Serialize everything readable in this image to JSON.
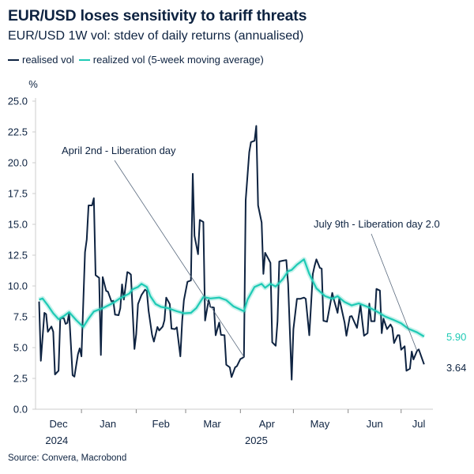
{
  "title": "EUR/USD loses sensitivity to tariff threats",
  "subtitle": "EUR/USD 1W vol: stdev of daily returns (annualised)",
  "source": "Source: Convera, Macrobond",
  "colors": {
    "realised": "#0e2341",
    "moving_average": "#1ecab5",
    "axis": "#cccccc",
    "annotation_line": "#5a6a7e"
  },
  "chart_data": {
    "type": "line",
    "title": "EUR/USD loses sensitivity to tariff threats",
    "subtitle": "EUR/USD 1W vol: stdev of daily returns (annualised)",
    "ylabel": "%",
    "ylim": [
      0,
      25
    ],
    "yticks": [
      "0.0",
      "2.5",
      "5.0",
      "7.5",
      "10.0",
      "12.5",
      "15.0",
      "17.5",
      "20.0",
      "22.5",
      "25.0"
    ],
    "xlim": [
      "2024-12-06",
      "2025-07-19"
    ],
    "xtick_dates": [
      "2025-01-01",
      "2025-02-01",
      "2025-03-01",
      "2025-04-01",
      "2025-05-01",
      "2025-06-01",
      "2025-07-01"
    ],
    "month_labels": [
      {
        "label": "Dec",
        "date": "2024-12-19"
      },
      {
        "label": "Jan",
        "date": "2025-01-16"
      },
      {
        "label": "Feb",
        "date": "2025-02-15"
      },
      {
        "label": "Mar",
        "date": "2025-03-16"
      },
      {
        "label": "Apr",
        "date": "2025-04-16"
      },
      {
        "label": "May",
        "date": "2025-05-16"
      },
      {
        "label": "Jun",
        "date": "2025-06-16"
      },
      {
        "label": "Jul",
        "date": "2025-07-11"
      }
    ],
    "year_labels": [
      {
        "label": "2024",
        "date": "2024-12-18"
      },
      {
        "label": "2025",
        "date": "2025-04-10"
      }
    ],
    "grid": false,
    "legend_position": "top-left",
    "series": [
      {
        "name": "realised vol",
        "color": "#0e2341",
        "end_label": "3.64",
        "points": [
          [
            "2024-12-08",
            8.74
          ],
          [
            "2024-12-09",
            3.93
          ],
          [
            "2024-12-11",
            7.82
          ],
          [
            "2024-12-12",
            7.71
          ],
          [
            "2024-12-13",
            6.28
          ],
          [
            "2024-12-15",
            6.71
          ],
          [
            "2024-12-16",
            6.28
          ],
          [
            "2024-12-17",
            2.82
          ],
          [
            "2024-12-19",
            3.12
          ],
          [
            "2024-12-20",
            7.39
          ],
          [
            "2024-12-22",
            7.39
          ],
          [
            "2024-12-23",
            6.92
          ],
          [
            "2024-12-24",
            7.0
          ],
          [
            "2024-12-25",
            7.82
          ],
          [
            "2024-12-27",
            2.76
          ],
          [
            "2024-12-28",
            2.65
          ],
          [
            "2024-12-30",
            4.47
          ],
          [
            "2024-12-31",
            4.94
          ],
          [
            "2025-01-01",
            4.29
          ],
          [
            "2025-01-03",
            12.74
          ],
          [
            "2025-01-04",
            13.76
          ],
          [
            "2025-01-05",
            16.54
          ],
          [
            "2025-01-07",
            16.54
          ],
          [
            "2025-01-08",
            17.12
          ],
          [
            "2025-01-09",
            10.88
          ],
          [
            "2025-01-11",
            10.66
          ],
          [
            "2025-01-12",
            4.4
          ],
          [
            "2025-01-13",
            10.72
          ],
          [
            "2025-01-15",
            9.6
          ],
          [
            "2025-01-16",
            9.53
          ],
          [
            "2025-01-18",
            8.74
          ],
          [
            "2025-01-19",
            8.8
          ],
          [
            "2025-01-20",
            7.67
          ],
          [
            "2025-01-22",
            7.63
          ],
          [
            "2025-01-23",
            8.2
          ],
          [
            "2025-01-24",
            10.13
          ],
          [
            "2025-01-25",
            8.89
          ],
          [
            "2025-01-27",
            11.13
          ],
          [
            "2025-01-28",
            11.06
          ],
          [
            "2025-01-29",
            10.92
          ],
          [
            "2025-01-31",
            4.89
          ],
          [
            "2025-02-01",
            6.07
          ],
          [
            "2025-02-02",
            8.53
          ],
          [
            "2025-02-04",
            9.27
          ],
          [
            "2025-02-06",
            9.7
          ],
          [
            "2025-02-07",
            9.6
          ],
          [
            "2025-02-08",
            7.99
          ],
          [
            "2025-02-10",
            6.03
          ],
          [
            "2025-02-11",
            5.49
          ],
          [
            "2025-02-13",
            6.67
          ],
          [
            "2025-02-14",
            6.39
          ],
          [
            "2025-02-16",
            6.71
          ],
          [
            "2025-02-17",
            7.24
          ],
          [
            "2025-02-18",
            9.06
          ],
          [
            "2025-02-20",
            8.53
          ],
          [
            "2025-02-21",
            6.54
          ],
          [
            "2025-02-23",
            6.5
          ],
          [
            "2025-02-24",
            6.65
          ],
          [
            "2025-02-26",
            4.29
          ],
          [
            "2025-02-27",
            7.14
          ],
          [
            "2025-02-28",
            8.85
          ],
          [
            "2025-03-02",
            10.34
          ],
          [
            "2025-03-04",
            10.45
          ],
          [
            "2025-03-05",
            19.1
          ],
          [
            "2025-03-06",
            14.08
          ],
          [
            "2025-03-08",
            12.58
          ],
          [
            "2025-03-09",
            15.36
          ],
          [
            "2025-03-11",
            15.19
          ],
          [
            "2025-03-12",
            7.2
          ],
          [
            "2025-03-14",
            8.85
          ],
          [
            "2025-03-15",
            8.31
          ],
          [
            "2025-03-17",
            8.25
          ],
          [
            "2025-03-18",
            6.0
          ],
          [
            "2025-03-20",
            7.03
          ],
          [
            "2025-03-21",
            6.03
          ],
          [
            "2025-03-23",
            6.0
          ],
          [
            "2025-03-24",
            3.61
          ],
          [
            "2025-03-26",
            3.4
          ],
          [
            "2025-03-27",
            2.61
          ],
          [
            "2025-03-29",
            3.4
          ],
          [
            "2025-03-30",
            3.5
          ],
          [
            "2025-04-01",
            4.08
          ],
          [
            "2025-04-02",
            4.15
          ],
          [
            "2025-04-03",
            4.25
          ],
          [
            "2025-04-04",
            16.97
          ],
          [
            "2025-04-06",
            20.85
          ],
          [
            "2025-04-07",
            21.67
          ],
          [
            "2025-04-09",
            21.78
          ],
          [
            "2025-04-10",
            22.99
          ],
          [
            "2025-04-11",
            16.54
          ],
          [
            "2025-04-13",
            15.15
          ],
          [
            "2025-04-14",
            10.98
          ],
          [
            "2025-04-15",
            12.69
          ],
          [
            "2025-04-17",
            12.16
          ],
          [
            "2025-04-18",
            11.88
          ],
          [
            "2025-04-19",
            5.43
          ],
          [
            "2025-04-21",
            5.15
          ],
          [
            "2025-04-22",
            7.14
          ],
          [
            "2025-04-23",
            11.99
          ],
          [
            "2025-04-25",
            12.05
          ],
          [
            "2025-04-27",
            12.1
          ],
          [
            "2025-04-28",
            10.2
          ],
          [
            "2025-04-30",
            2.4
          ],
          [
            "2025-05-01",
            6.5
          ],
          [
            "2025-05-03",
            8.96
          ],
          [
            "2025-05-05",
            8.96
          ],
          [
            "2025-05-07",
            9.06
          ],
          [
            "2025-05-08",
            8.96
          ],
          [
            "2025-05-10",
            6.0
          ],
          [
            "2025-05-12",
            10.98
          ],
          [
            "2025-05-13",
            11.62
          ],
          [
            "2025-05-14",
            12.16
          ],
          [
            "2025-05-16",
            11.47
          ],
          [
            "2025-05-17",
            11.41
          ],
          [
            "2025-05-18",
            7.18
          ],
          [
            "2025-05-20",
            7.1
          ],
          [
            "2025-05-21",
            7.87
          ],
          [
            "2025-05-23",
            9.44
          ],
          [
            "2025-05-24",
            8.85
          ],
          [
            "2025-05-26",
            7.82
          ],
          [
            "2025-05-27",
            8.99
          ],
          [
            "2025-05-29",
            7.67
          ],
          [
            "2025-05-30",
            7.03
          ],
          [
            "2025-05-31",
            5.96
          ],
          [
            "2025-06-02",
            7.52
          ],
          [
            "2025-06-03",
            7.56
          ],
          [
            "2025-06-05",
            6.92
          ],
          [
            "2025-06-06",
            6.6
          ],
          [
            "2025-06-08",
            8.46
          ],
          [
            "2025-06-09",
            7.14
          ],
          [
            "2025-06-10",
            5.96
          ],
          [
            "2025-06-12",
            6.17
          ],
          [
            "2025-06-13",
            8.57
          ],
          [
            "2025-06-14",
            7.14
          ],
          [
            "2025-06-16",
            7.14
          ],
          [
            "2025-06-17",
            9.76
          ],
          [
            "2025-06-19",
            9.63
          ],
          [
            "2025-06-20",
            6.17
          ],
          [
            "2025-06-21",
            7.35
          ],
          [
            "2025-06-23",
            6.5
          ],
          [
            "2025-06-25",
            6.88
          ],
          [
            "2025-06-26",
            6.6
          ],
          [
            "2025-06-27",
            5.37
          ],
          [
            "2025-06-29",
            6.0
          ],
          [
            "2025-06-30",
            6.0
          ],
          [
            "2025-07-01",
            4.83
          ],
          [
            "2025-07-03",
            5.11
          ],
          [
            "2025-07-04",
            3.12
          ],
          [
            "2025-07-06",
            3.29
          ],
          [
            "2025-07-07",
            4.68
          ],
          [
            "2025-07-08",
            4.04
          ],
          [
            "2025-07-10",
            4.74
          ],
          [
            "2025-07-11",
            4.85
          ],
          [
            "2025-07-14",
            3.64
          ]
        ]
      },
      {
        "name": "realized vol (5-week moving average)",
        "color": "#1ecab5",
        "end_label": "5.90",
        "points": [
          [
            "2024-12-08",
            8.89
          ],
          [
            "2024-12-10",
            8.99
          ],
          [
            "2024-12-13",
            8.42
          ],
          [
            "2024-12-16",
            7.78
          ],
          [
            "2024-12-19",
            7.31
          ],
          [
            "2024-12-22",
            7.56
          ],
          [
            "2024-12-25",
            7.88
          ],
          [
            "2024-12-29",
            7.24
          ],
          [
            "2025-01-02",
            6.67
          ],
          [
            "2025-01-05",
            7.35
          ],
          [
            "2025-01-08",
            7.93
          ],
          [
            "2025-01-13",
            8.2
          ],
          [
            "2025-01-19",
            8.63
          ],
          [
            "2025-01-23",
            9.02
          ],
          [
            "2025-01-28",
            9.38
          ],
          [
            "2025-01-30",
            9.74
          ],
          [
            "2025-02-02",
            9.92
          ],
          [
            "2025-02-04",
            10.17
          ],
          [
            "2025-02-07",
            9.92
          ],
          [
            "2025-02-09",
            9.17
          ],
          [
            "2025-02-12",
            8.53
          ],
          [
            "2025-02-15",
            8.31
          ],
          [
            "2025-02-19",
            8.2
          ],
          [
            "2025-02-24",
            7.95
          ],
          [
            "2025-02-28",
            7.78
          ],
          [
            "2025-03-04",
            7.82
          ],
          [
            "2025-03-07",
            8.2
          ],
          [
            "2025-03-11",
            9.1
          ],
          [
            "2025-03-15",
            8.99
          ],
          [
            "2025-03-20",
            9.06
          ],
          [
            "2025-03-24",
            8.85
          ],
          [
            "2025-03-28",
            8.35
          ],
          [
            "2025-04-03",
            7.95
          ],
          [
            "2025-04-05",
            8.89
          ],
          [
            "2025-04-09",
            9.92
          ],
          [
            "2025-04-13",
            10.17
          ],
          [
            "2025-04-15",
            9.85
          ],
          [
            "2025-04-18",
            10.17
          ],
          [
            "2025-04-21",
            9.96
          ],
          [
            "2025-04-25",
            10.56
          ],
          [
            "2025-04-28",
            11.2
          ],
          [
            "2025-04-30",
            11.3
          ],
          [
            "2025-05-03",
            11.73
          ],
          [
            "2025-05-07",
            12.16
          ],
          [
            "2025-05-10",
            10.98
          ],
          [
            "2025-05-14",
            9.81
          ],
          [
            "2025-05-19",
            9.17
          ],
          [
            "2025-05-23",
            8.96
          ],
          [
            "2025-05-26",
            9.17
          ],
          [
            "2025-05-30",
            8.7
          ],
          [
            "2025-06-03",
            8.42
          ],
          [
            "2025-06-07",
            8.59
          ],
          [
            "2025-06-13",
            8.25
          ],
          [
            "2025-06-17",
            7.95
          ],
          [
            "2025-06-22",
            7.52
          ],
          [
            "2025-06-26",
            7.29
          ],
          [
            "2025-07-01",
            6.97
          ],
          [
            "2025-07-05",
            6.54
          ],
          [
            "2025-07-10",
            6.24
          ],
          [
            "2025-07-14",
            5.9
          ]
        ]
      }
    ],
    "annotations": [
      {
        "text": "April 2nd - Liberation day",
        "target": [
          "2025-04-03",
          4.25
        ]
      },
      {
        "text": "July 9th - Liberation day 2.0",
        "target": [
          "2025-07-10",
          4.74
        ]
      }
    ]
  }
}
